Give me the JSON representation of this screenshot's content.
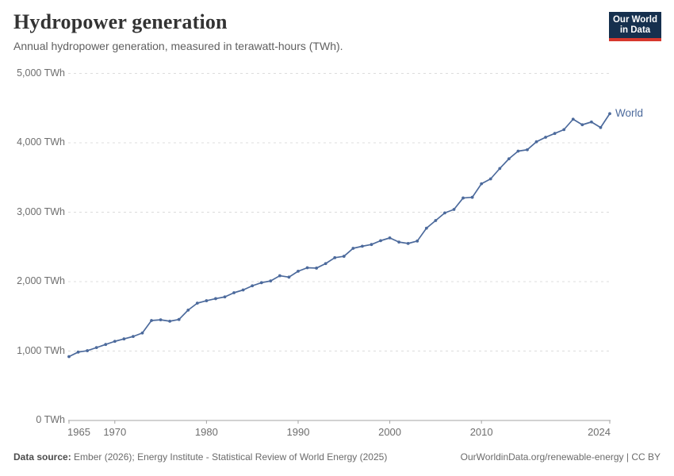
{
  "header": {
    "title": "Hydropower generation",
    "subtitle": "Annual hydropower generation, measured in terawatt-hours (TWh)."
  },
  "logo": {
    "line1": "Our World",
    "line2": "in Data",
    "bg_color": "#16304e",
    "accent_color": "#d7382d"
  },
  "chart_data": {
    "type": "line",
    "title": "Hydropower generation",
    "ylabel": "TWh",
    "xlabel": "",
    "grid": "horizontal-dashed",
    "legend_position": "end-of-line",
    "xlim": [
      1965,
      2024
    ],
    "ylim": [
      0,
      5000
    ],
    "xticks": [
      1965,
      1970,
      1980,
      1990,
      2000,
      2010,
      2024
    ],
    "yticks": [
      {
        "value": 0,
        "label": "0 TWh"
      },
      {
        "value": 1000,
        "label": "1,000 TWh"
      },
      {
        "value": 2000,
        "label": "2,000 TWh"
      },
      {
        "value": 3000,
        "label": "3,000 TWh"
      },
      {
        "value": 4000,
        "label": "4,000 TWh"
      },
      {
        "value": 5000,
        "label": "5,000 TWh"
      }
    ],
    "series": [
      {
        "name": "World",
        "color": "#4c6a9c",
        "x": [
          1965,
          1966,
          1967,
          1968,
          1969,
          1970,
          1971,
          1972,
          1973,
          1974,
          1975,
          1976,
          1977,
          1978,
          1979,
          1980,
          1981,
          1982,
          1983,
          1984,
          1985,
          1986,
          1987,
          1988,
          1989,
          1990,
          1991,
          1992,
          1993,
          1994,
          1995,
          1996,
          1997,
          1998,
          1999,
          2000,
          2001,
          2002,
          2003,
          2004,
          2005,
          2006,
          2007,
          2008,
          2009,
          2010,
          2011,
          2012,
          2013,
          2014,
          2015,
          2016,
          2017,
          2018,
          2019,
          2020,
          2021,
          2022,
          2023,
          2024
        ],
        "values": [
          920,
          985,
          1005,
          1050,
          1095,
          1140,
          1175,
          1210,
          1260,
          1440,
          1450,
          1430,
          1455,
          1590,
          1690,
          1725,
          1755,
          1780,
          1840,
          1880,
          1940,
          1985,
          2010,
          2085,
          2065,
          2150,
          2200,
          2195,
          2260,
          2345,
          2365,
          2480,
          2510,
          2535,
          2590,
          2630,
          2570,
          2550,
          2585,
          2770,
          2880,
          2990,
          3040,
          3205,
          3215,
          3410,
          3480,
          3630,
          3770,
          3880,
          3900,
          4015,
          4080,
          4135,
          4190,
          4340,
          4260,
          4300,
          4220,
          4420
        ]
      }
    ]
  },
  "footer": {
    "source_label": "Data source:",
    "source_text": " Ember (2026); Energy Institute - Statistical Review of World Energy (2025)",
    "link": "OurWorldinData.org/renewable-energy | CC BY"
  }
}
